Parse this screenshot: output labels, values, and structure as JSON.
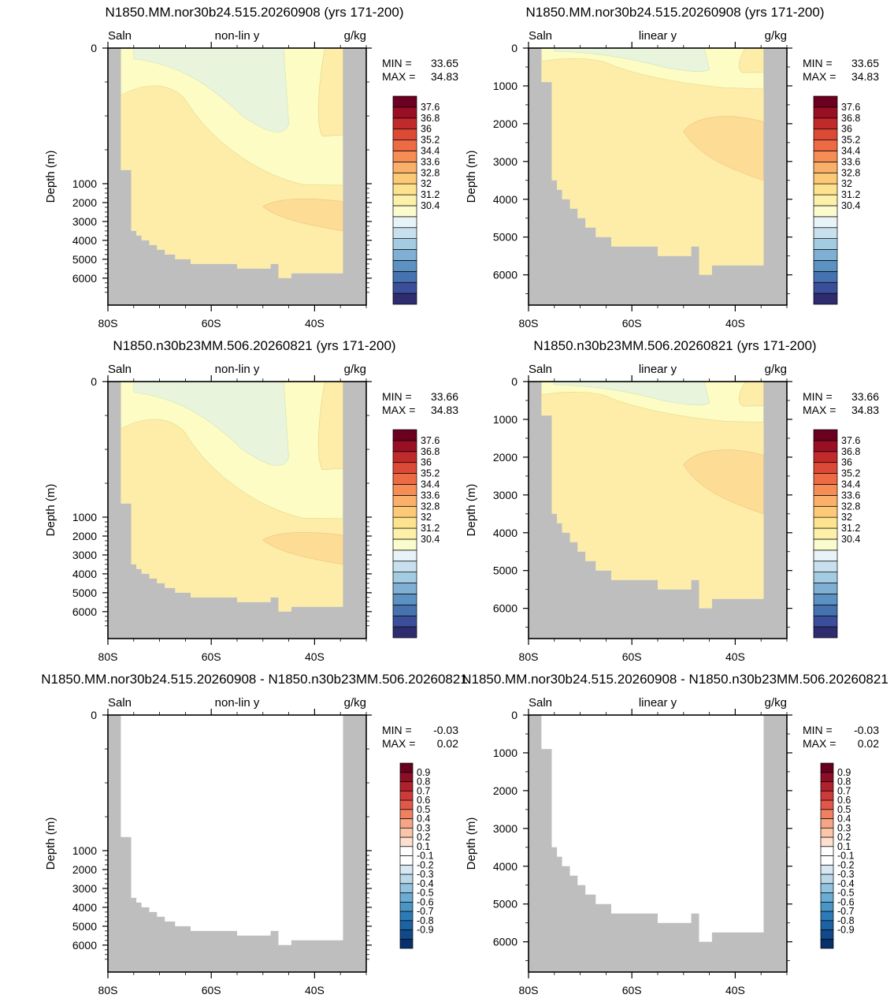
{
  "colors": {
    "land": "#bebebe",
    "salinity_levels": [
      "#e8f4dc",
      "#fcfcc4",
      "#fdeda8",
      "#fddc96",
      "#fbd08b"
    ],
    "salinity_colorbar": [
      "#2e2c6e",
      "#3a4e9a",
      "#4673b0",
      "#5c92c2",
      "#7fb0d3",
      "#a3cbe2",
      "#c8e0ee",
      "#e7f3f6",
      "#fbfccd",
      "#fdf0a8",
      "#fde28f",
      "#fcc977",
      "#fab06a",
      "#f68d55",
      "#ec6a44",
      "#dc4a35",
      "#c12a2a",
      "#9b0f25",
      "#6b0020"
    ],
    "difference_colorbar": [
      "#08306b",
      "#12498a",
      "#1d62a2",
      "#2c7bb6",
      "#4a95c6",
      "#6aacd2",
      "#93c3de",
      "#bbd8e9",
      "#d8e8f2",
      "#ffffff",
      "#ffffff",
      "#fde0cf",
      "#fbc5a9",
      "#f7a587",
      "#ef8060",
      "#e1584b",
      "#cc3a3a",
      "#b0212e",
      "#8c0d25",
      "#67001f"
    ]
  },
  "panels": [
    {
      "title": "N1850.MM.nor30b24.515.20260908 (yrs 171-200)",
      "variable": "Saln",
      "y_scale_label": "non-lin y",
      "units": "g/kg",
      "min_label": "MIN =",
      "min_value": "33.65",
      "max_label": "MAX =",
      "max_value": "34.83",
      "type": "salinity"
    },
    {
      "title": "N1850.MM.nor30b24.515.20260908 (yrs 171-200)",
      "variable": "Saln",
      "y_scale_label": "linear y",
      "units": "g/kg",
      "min_label": "MIN =",
      "min_value": "33.65",
      "max_label": "MAX =",
      "max_value": "34.83",
      "type": "salinity"
    },
    {
      "title": "N1850.n30b23MM.506.20260821 (yrs 171-200)",
      "variable": "Saln",
      "y_scale_label": "non-lin y",
      "units": "g/kg",
      "min_label": "MIN =",
      "min_value": "33.66",
      "max_label": "MAX =",
      "max_value": "34.83",
      "type": "salinity"
    },
    {
      "title": "N1850.n30b23MM.506.20260821 (yrs 171-200)",
      "variable": "Saln",
      "y_scale_label": "linear y",
      "units": "g/kg",
      "min_label": "MIN =",
      "min_value": "33.66",
      "max_label": "MAX =",
      "max_value": "34.83",
      "type": "salinity"
    },
    {
      "title": "N1850.MM.nor30b24.515.20260908 - N1850.n30b23MM.506.20260821",
      "variable": "Saln",
      "y_scale_label": "non-lin y",
      "units": "g/kg",
      "min_label": "MIN =",
      "min_value": "-0.03",
      "max_label": "MAX =",
      "max_value": "0.02",
      "type": "difference"
    },
    {
      "title": "N1850.MM.nor30b24.515.20260908 - N1850.n30b23MM.506.20260821",
      "variable": "Saln",
      "y_scale_label": "linear y",
      "units": "g/kg",
      "min_label": "MIN =",
      "min_value": "-0.03",
      "max_label": "MAX =",
      "max_value": "0.02",
      "type": "difference"
    }
  ],
  "chart_data": {
    "type": "heatmap",
    "description_of_fields": "zonal-mean salinity sections, latitude vs depth",
    "y_label": "Depth (m)",
    "x_tick_labels": [
      "80S",
      "60S",
      "40S"
    ],
    "x_ticks_deg": [
      -80,
      -60,
      -40
    ],
    "x_range_deg": [
      -80,
      -30
    ],
    "y_ticks_nonlinear": [
      "0",
      "1000",
      "2000",
      "3000",
      "4000",
      "5000",
      "6000"
    ],
    "y_ticks_linear": [
      "0",
      "1000",
      "2000",
      "3000",
      "4000",
      "5000",
      "6000"
    ],
    "y_range_m": [
      0,
      6800
    ],
    "salinity_colorbar_labels": [
      "37.6",
      "36.8",
      "36",
      "35.2",
      "34.4",
      "33.6",
      "32.8",
      "32",
      "31.2",
      "30.4"
    ],
    "difference_colorbar_labels": [
      "0.9",
      "0.8",
      "0.7",
      "0.6",
      "0.5",
      "0.4",
      "0.3",
      "0.2",
      "0.1",
      "-0.1",
      "-0.2",
      "-0.3",
      "-0.4",
      "-0.5",
      "-0.6",
      "-0.7",
      "-0.8",
      "-0.9"
    ],
    "bathymetry": [
      {
        "lat": -77.5,
        "depth": 900
      },
      {
        "lat": -75.5,
        "depth": 3500
      },
      {
        "lat": -74.5,
        "depth": 3750
      },
      {
        "lat": -73.5,
        "depth": 4000
      },
      {
        "lat": -72,
        "depth": 4250
      },
      {
        "lat": -70.5,
        "depth": 4500
      },
      {
        "lat": -69,
        "depth": 4750
      },
      {
        "lat": -67,
        "depth": 5000
      },
      {
        "lat": -64,
        "depth": 5250
      },
      {
        "lat": -55,
        "depth": 5500
      },
      {
        "lat": -48.5,
        "depth": 5250
      },
      {
        "lat": -47,
        "depth": 6000
      },
      {
        "lat": -44.5,
        "depth": 5750
      },
      {
        "lat": -34.5,
        "depth": 5500
      }
    ]
  }
}
